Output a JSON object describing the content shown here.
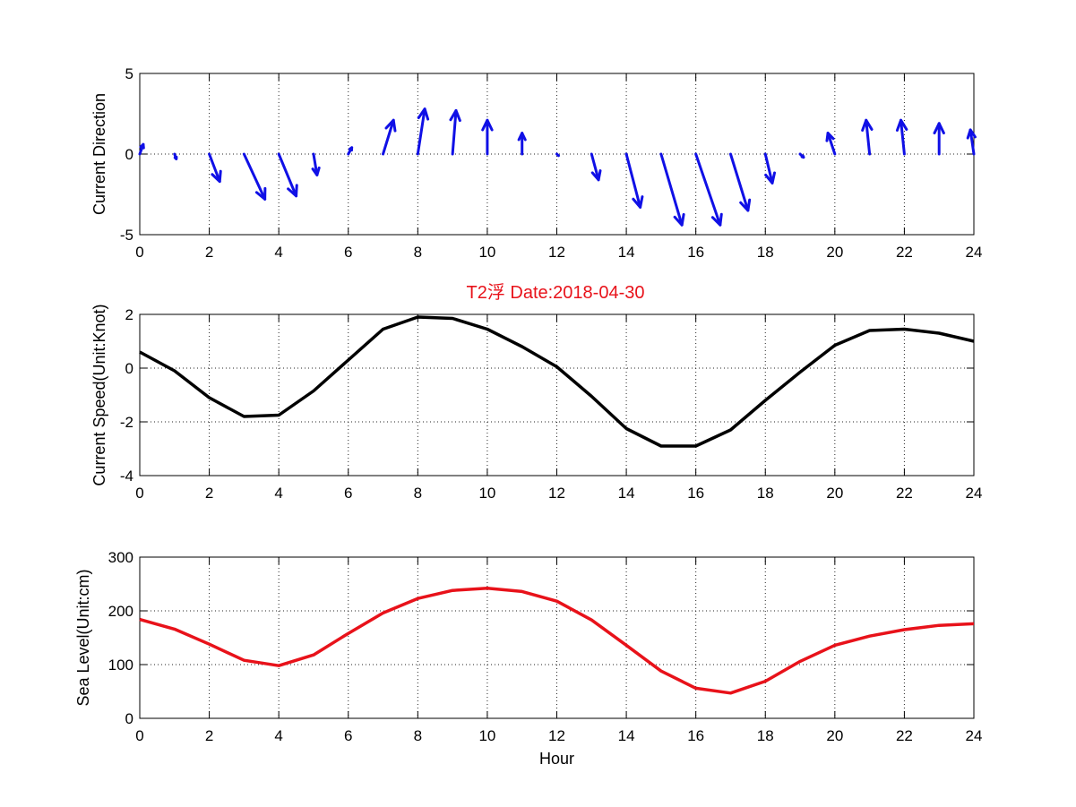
{
  "figure": {
    "title": "T2浮   Date:2018-04-30",
    "title_color": "#e8121a"
  },
  "chart_data": [
    {
      "type": "quiver",
      "ylabel": "Current Direction",
      "xlabel": "",
      "xlim": [
        0,
        24
      ],
      "ylim": [
        -5,
        5
      ],
      "xticks": [
        0,
        2,
        4,
        6,
        8,
        10,
        12,
        14,
        16,
        18,
        20,
        22,
        24
      ],
      "yticks": [
        -5,
        0,
        5
      ],
      "grid": true,
      "color": "#1010e6",
      "series": [
        {
          "x": [
            0,
            1,
            2,
            3,
            4,
            5,
            6,
            7,
            8,
            9,
            10,
            11,
            12,
            13,
            14,
            15,
            16,
            17,
            18,
            19,
            20,
            21,
            22,
            23,
            24
          ],
          "u": [
            0.1,
            0.05,
            0.3,
            0.6,
            0.5,
            0.1,
            0.1,
            0.3,
            0.2,
            0.1,
            0,
            0,
            0.05,
            0.2,
            0.4,
            0.6,
            0.7,
            0.5,
            0.2,
            0.1,
            -0.2,
            -0.1,
            -0.1,
            0,
            -0.1
          ],
          "v": [
            0.6,
            -0.3,
            -1.7,
            -2.8,
            -2.6,
            -1.3,
            0.4,
            2.1,
            2.8,
            2.7,
            2.1,
            1.3,
            -0.1,
            -1.6,
            -3.3,
            -4.4,
            -4.4,
            -3.5,
            -1.8,
            -0.2,
            1.3,
            2.1,
            2.1,
            1.9,
            1.5
          ]
        }
      ]
    },
    {
      "type": "line",
      "ylabel": "Current Speed(Unit:Knot)",
      "xlabel": "",
      "xlim": [
        0,
        24
      ],
      "ylim": [
        -4,
        2
      ],
      "xticks": [
        0,
        2,
        4,
        6,
        8,
        10,
        12,
        14,
        16,
        18,
        20,
        22,
        24
      ],
      "yticks": [
        -4,
        -2,
        0,
        2
      ],
      "grid": true,
      "color": "#000000",
      "series": [
        {
          "x": [
            0,
            1,
            2,
            3,
            4,
            5,
            6,
            7,
            8,
            9,
            10,
            11,
            12,
            13,
            14,
            15,
            16,
            17,
            18,
            19,
            20,
            21,
            22,
            23,
            24
          ],
          "values": [
            0.6,
            -0.1,
            -1.1,
            -1.8,
            -1.75,
            -0.85,
            0.3,
            1.45,
            1.9,
            1.85,
            1.45,
            0.8,
            0.05,
            -1.05,
            -2.25,
            -2.9,
            -2.9,
            -2.3,
            -1.2,
            -0.15,
            0.85,
            1.4,
            1.45,
            1.3,
            1.0
          ]
        }
      ]
    },
    {
      "type": "line",
      "ylabel": "Sea Level(Unit:cm)",
      "xlabel": "Hour",
      "xlim": [
        0,
        24
      ],
      "ylim": [
        0,
        300
      ],
      "xticks": [
        0,
        2,
        4,
        6,
        8,
        10,
        12,
        14,
        16,
        18,
        20,
        22,
        24
      ],
      "yticks": [
        0,
        100,
        200,
        300
      ],
      "grid": true,
      "color": "#e8121a",
      "series": [
        {
          "x": [
            0,
            1,
            2,
            3,
            4,
            5,
            6,
            7,
            8,
            9,
            10,
            11,
            12,
            13,
            14,
            15,
            16,
            17,
            18,
            19,
            20,
            21,
            22,
            23,
            24
          ],
          "values": [
            184,
            166,
            138,
            108,
            98,
            118,
            158,
            196,
            223,
            238,
            242,
            236,
            218,
            183,
            136,
            88,
            56,
            47,
            69,
            106,
            136,
            153,
            165,
            173,
            176
          ]
        }
      ]
    }
  ]
}
